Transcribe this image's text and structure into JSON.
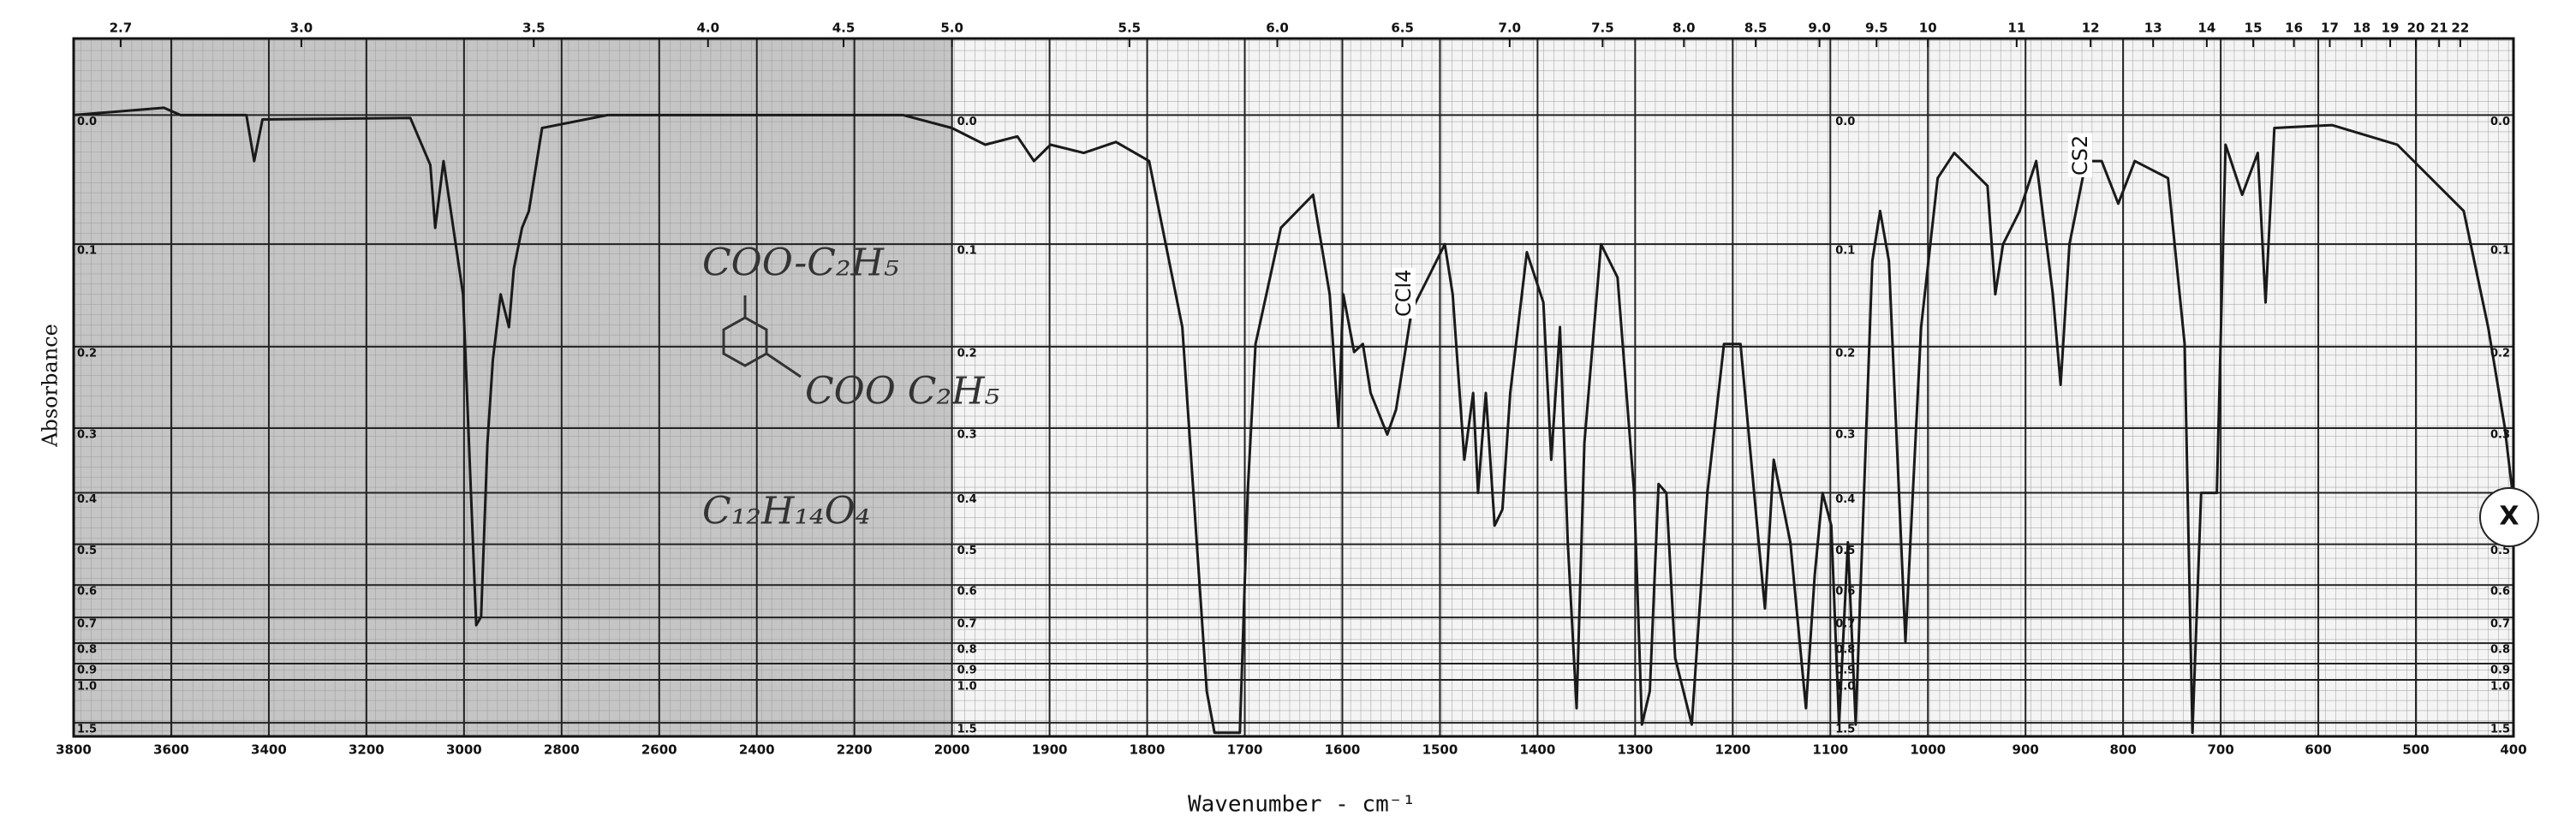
{
  "chart_data": {
    "type": "line",
    "yscale": "transmittance",
    "x_label": "Wavenumber - cm⁻¹",
    "y_label": "Absorbance",
    "color": "#1a1a1a",
    "grid": true,
    "xlim": [
      3800,
      400
    ],
    "xticks": [
      3800,
      3600,
      3400,
      3200,
      3000,
      2800,
      2600,
      2400,
      2200,
      2000,
      1900,
      1800,
      1700,
      1600,
      1500,
      1400,
      1300,
      1200,
      1100,
      1000,
      900,
      800,
      700,
      600,
      500,
      400
    ],
    "x2ticks": [
      2.7,
      {
        "value": 3,
        "label": "3.0"
      },
      3.5,
      {
        "value": 4,
        "label": "4.0"
      },
      4.5,
      {
        "value": 5,
        "label": "5.0"
      },
      5.5,
      {
        "value": 6,
        "label": "6.0"
      },
      6.5,
      {
        "value": 7,
        "label": "7.0"
      },
      7.5,
      {
        "value": 8,
        "label": "8.0"
      },
      8.5,
      {
        "value": 9,
        "label": "9.0"
      },
      9.5,
      10,
      11,
      12,
      13,
      14,
      15,
      16,
      17,
      18,
      19,
      20,
      21,
      22
    ],
    "ylim": [
      2,
      -0.05
    ],
    "yticks": [
      {
        "value": 0,
        "label": "0.0"
      },
      0.1,
      0.2,
      0.3,
      0.4,
      0.5,
      0.6,
      0.7,
      0.8,
      0.9,
      {
        "value": 1,
        "label": "1.0"
      },
      1.5
    ],
    "annotations": [
      "CCl4",
      "CS2",
      "COO-C₂H₅",
      "COO C₂H₅",
      "C₁₂H₁₄O₄",
      "X"
    ],
    "x": [
      3800,
      3615,
      3581,
      3446,
      3430,
      3413,
      3110,
      3069,
      3059,
      3042,
      3002,
      2975,
      2965,
      2952,
      2941,
      2925,
      2908,
      2898,
      2881,
      2867,
      2840,
      2706,
      2100,
      2000,
      1966,
      1933,
      1916,
      1899,
      1865,
      1832,
      1798,
      1764,
      1739,
      1731,
      1705,
      1697,
      1689,
      1663,
      1630,
      1613,
      1604,
      1599,
      1588,
      1579,
      1571,
      1554,
      1545,
      1529,
      1512,
      1495,
      1487,
      1475,
      1466,
      1461,
      1453,
      1444,
      1436,
      1428,
      1411,
      1394,
      1386,
      1377,
      1369,
      1360,
      1352,
      1335,
      1318,
      1301,
      1293,
      1285,
      1276,
      1268,
      1259,
      1242,
      1226,
      1209,
      1192,
      1175,
      1167,
      1158,
      1141,
      1125,
      1116,
      1108,
      1099,
      1091,
      1082,
      1074,
      1057,
      1049,
      1040,
      1023,
      1007,
      990,
      973,
      939,
      931,
      923,
      906,
      889,
      872,
      864,
      855,
      838,
      822,
      805,
      788,
      754,
      737,
      729,
      720,
      704,
      695,
      678,
      662,
      654,
      645,
      586,
      519,
      451,
      426,
      409,
      401
    ],
    "values": [
      0,
      -0.005,
      0,
      0,
      0.033,
      0.003,
      0.002,
      0.036,
      0.086,
      0.033,
      0.146,
      0.728,
      0.697,
      0.321,
      0.215,
      0.146,
      0.179,
      0.122,
      0.086,
      0.072,
      0.009,
      0,
      0,
      0.009,
      0.021,
      0.015,
      0.033,
      0.021,
      0.027,
      0.019,
      0.033,
      0.179,
      1.086,
      1.8,
      1.8,
      0.4,
      0.197,
      0.086,
      0.059,
      0.146,
      0.298,
      0.146,
      0.206,
      0.197,
      0.254,
      0.309,
      0.275,
      0.162,
      0.13,
      0.1,
      0.146,
      0.346,
      0.254,
      0.4,
      0.254,
      0.461,
      0.43,
      0.254,
      0.107,
      0.154,
      0.346,
      0.179,
      0.496,
      1.26,
      0.321,
      0.1,
      0.13,
      0.4,
      1.54,
      1.086,
      0.385,
      0.4,
      0.87,
      1.54,
      0.4,
      0.197,
      0.197,
      0.461,
      0.67,
      0.346,
      0.496,
      1.26,
      0.575,
      0.4,
      0.461,
      1.54,
      0.496,
      1.54,
      0.115,
      0.072,
      0.115,
      0.793,
      0.179,
      0.046,
      0.027,
      0.052,
      0.146,
      0.1,
      0.072,
      0.033,
      0.146,
      0.244,
      0.1,
      0.033,
      0.033,
      0.066,
      0.033,
      0.046,
      0.197,
      1.8,
      0.4,
      0.4,
      0.021,
      0.059,
      0.027,
      0.154,
      0.009,
      0.007,
      0.021,
      0.072,
      0.179,
      0.298,
      0.4
    ]
  }
}
